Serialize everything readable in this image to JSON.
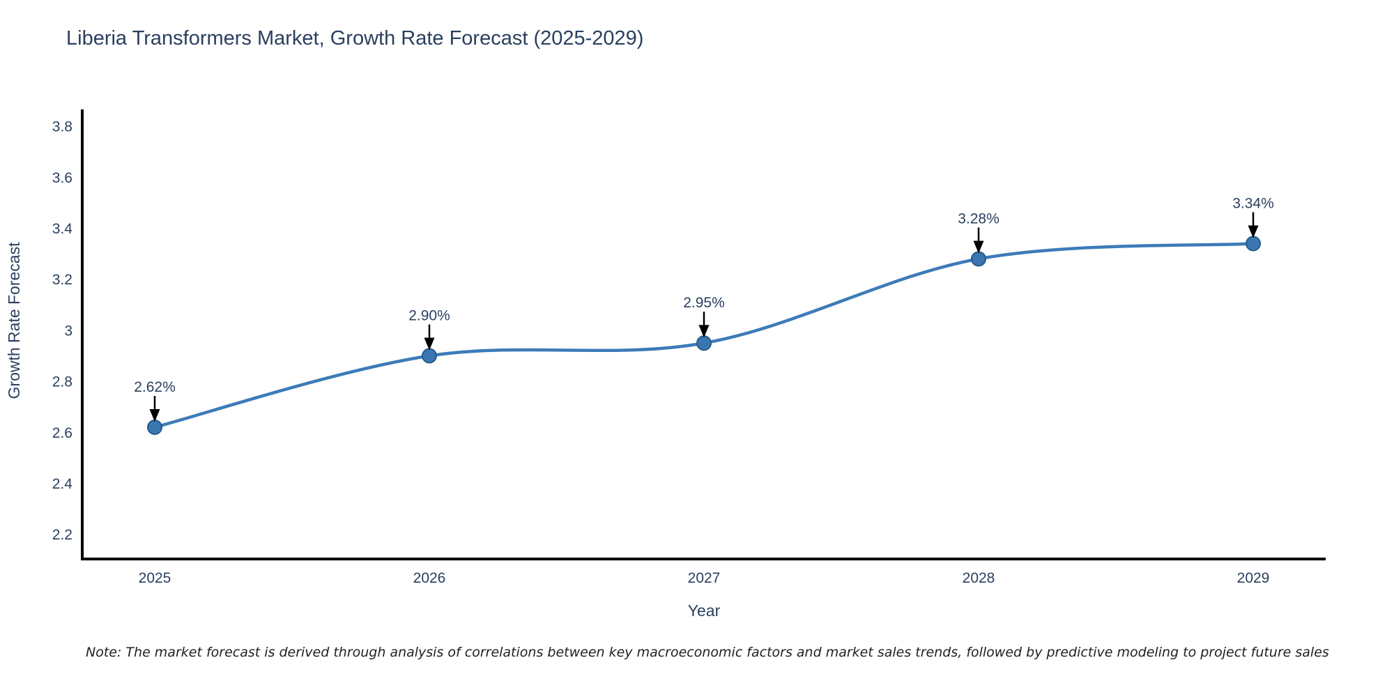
{
  "chart_data": {
    "type": "line",
    "title": "Liberia Transformers Market, Growth Rate Forecast (2025-2029)",
    "xlabel": "Year",
    "ylabel": "Growth Rate Forecast",
    "x": [
      2025,
      2026,
      2027,
      2028,
      2029
    ],
    "series": [
      {
        "name": "Growth Rate Forecast",
        "values": [
          2.62,
          2.9,
          2.95,
          3.28,
          3.34
        ]
      }
    ],
    "point_labels": [
      "2.62%",
      "2.90%",
      "2.95%",
      "3.28%",
      "3.34%"
    ],
    "ylim": [
      2.109,
      3.866
    ],
    "yticks": [
      2.2,
      2.4,
      2.6,
      2.8,
      3,
      3.2,
      3.4,
      3.6,
      3.8
    ],
    "grid": false,
    "legend": false,
    "line_shape": "spline",
    "annotation_style": "black-down-arrow",
    "colors": {
      "line": "#3d7bb8",
      "marker_fill": "#3a76af",
      "marker_edge": "#265a8c",
      "arrow": "#000000",
      "axis": "#000000",
      "text": "#2a3f5f",
      "note_text": "#1f1f1f",
      "background": "#ffffff"
    }
  },
  "footnote": "Note: The market forecast is derived through analysis of correlations between key macroeconomic factors and market sales trends, followed by predictive modeling to project future sales"
}
